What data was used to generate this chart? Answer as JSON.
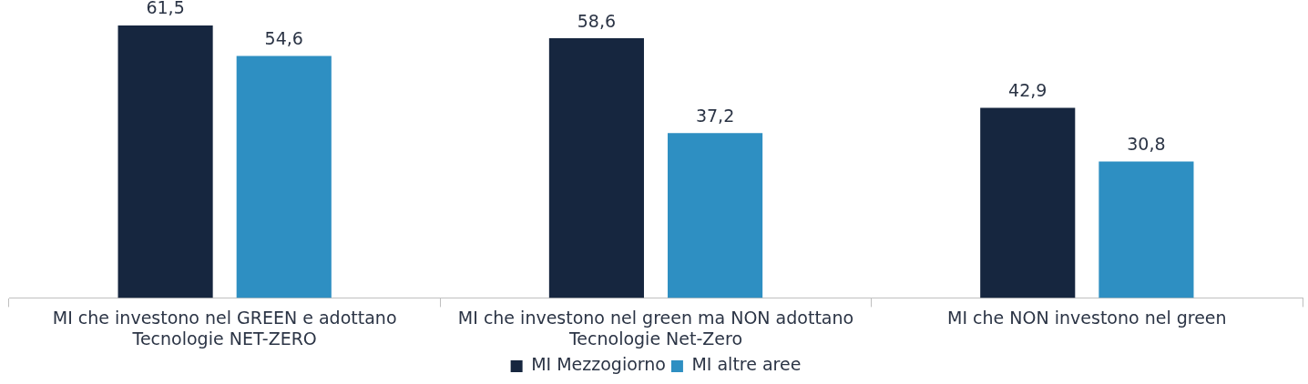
{
  "chart_data": {
    "type": "bar",
    "categories": [
      "MI che investono nel GREEN e adottano Tecnologie NET-ZERO",
      "MI che investono nel green ma NON adottano Tecnologie Net-Zero",
      "MI che NON investono nel green"
    ],
    "series": [
      {
        "name": "MI Mezzogiorno",
        "color": "#16263f",
        "values": [
          61.5,
          58.6,
          42.9
        ],
        "value_labels": [
          "61,5",
          "58,6",
          "42,9"
        ]
      },
      {
        "name": "MI altre aree",
        "color": "#2e8fc2",
        "values": [
          54.6,
          37.2,
          30.8
        ],
        "value_labels": [
          "54,6",
          "37,2",
          "30,8"
        ]
      }
    ],
    "legend": "bottom"
  }
}
